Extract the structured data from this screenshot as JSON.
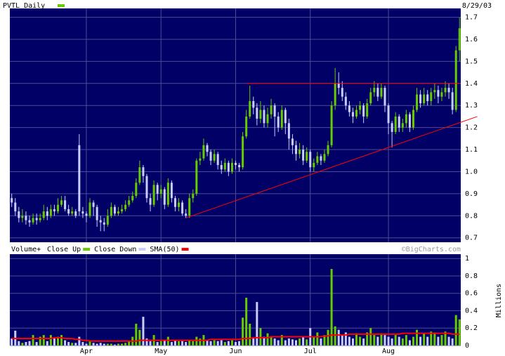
{
  "chart_data": [
    {
      "type": "candlestick",
      "title": "PVTL Daily",
      "date": "8/29/03",
      "color": "#66cc00",
      "up_color": "#66cc00",
      "down_color": "#c8ccff",
      "open": [
        0.88,
        0.86,
        0.82,
        0.79,
        0.8,
        0.78,
        0.77,
        0.79,
        0.78,
        0.79,
        0.82,
        0.8,
        0.83,
        0.82,
        0.85,
        0.87,
        0.83,
        0.81,
        0.82,
        1.12,
        0.82,
        0.81,
        0.8,
        0.86,
        0.84,
        0.78,
        0.77,
        0.76,
        0.8,
        0.84,
        0.81,
        0.82,
        0.83,
        0.85,
        0.87,
        0.89,
        0.95,
        1.02,
        0.98,
        0.88,
        0.85,
        0.94,
        0.9,
        0.92,
        0.85,
        0.95,
        0.88,
        0.84,
        0.86,
        0.81,
        0.8,
        0.88,
        0.9,
        1.05,
        1.06,
        1.12,
        1.09,
        1.05,
        1.08,
        1.03,
        1.01,
        1.04,
        1.0,
        1.04,
        1.03,
        1.02,
        1.16,
        1.25,
        1.32,
        1.29,
        1.24,
        1.28,
        1.22,
        1.26,
        1.3,
        1.25,
        1.2,
        1.28,
        1.22,
        1.15,
        1.12,
        1.08,
        1.1,
        1.05,
        1.09,
        1.02,
        1.04,
        1.07,
        1.05,
        1.08,
        1.12,
        1.3,
        1.4,
        1.38,
        1.34,
        1.3,
        1.27,
        1.25,
        1.28,
        1.3,
        1.25,
        1.31,
        1.36,
        1.38,
        1.34,
        1.38,
        1.3,
        1.22,
        1.18,
        1.25,
        1.2,
        1.22,
        1.26,
        1.2,
        1.28,
        1.35,
        1.31,
        1.35,
        1.32,
        1.36,
        1.37,
        1.34,
        1.36,
        1.38,
        1.36,
        1.28,
        1.55
      ],
      "high": [
        0.9,
        0.88,
        0.84,
        0.83,
        0.82,
        0.8,
        0.81,
        0.81,
        0.81,
        0.85,
        0.84,
        0.85,
        0.85,
        0.88,
        0.89,
        0.89,
        0.85,
        0.84,
        0.83,
        1.17,
        0.84,
        0.82,
        0.88,
        0.87,
        0.85,
        0.8,
        0.79,
        0.83,
        0.86,
        0.85,
        0.84,
        0.85,
        0.87,
        0.89,
        0.91,
        0.97,
        1.05,
        1.03,
        0.99,
        0.9,
        0.96,
        0.95,
        0.94,
        0.93,
        0.97,
        0.96,
        0.89,
        0.88,
        0.87,
        0.83,
        0.9,
        0.92,
        1.06,
        1.09,
        1.15,
        1.13,
        1.1,
        1.1,
        1.09,
        1.05,
        1.06,
        1.05,
        1.06,
        1.05,
        1.04,
        1.18,
        1.28,
        1.39,
        1.34,
        1.31,
        1.32,
        1.3,
        1.29,
        1.33,
        1.31,
        1.27,
        1.3,
        1.29,
        1.24,
        1.17,
        1.14,
        1.13,
        1.12,
        1.11,
        1.1,
        1.06,
        1.09,
        1.08,
        1.1,
        1.14,
        1.32,
        1.47,
        1.45,
        1.41,
        1.36,
        1.32,
        1.29,
        1.3,
        1.32,
        1.31,
        1.33,
        1.38,
        1.41,
        1.4,
        1.4,
        1.39,
        1.31,
        1.23,
        1.27,
        1.26,
        1.24,
        1.28,
        1.27,
        1.3,
        1.38,
        1.37,
        1.38,
        1.37,
        1.38,
        1.4,
        1.39,
        1.38,
        1.41,
        1.4,
        1.38,
        1.57,
        1.7
      ],
      "low": [
        0.84,
        0.8,
        0.77,
        0.77,
        0.76,
        0.75,
        0.76,
        0.76,
        0.77,
        0.78,
        0.78,
        0.79,
        0.8,
        0.81,
        0.84,
        0.82,
        0.8,
        0.8,
        0.79,
        0.8,
        0.79,
        0.77,
        0.79,
        0.8,
        0.75,
        0.73,
        0.73,
        0.75,
        0.79,
        0.8,
        0.8,
        0.81,
        0.82,
        0.84,
        0.86,
        0.88,
        0.94,
        0.95,
        0.86,
        0.82,
        0.84,
        0.87,
        0.88,
        0.83,
        0.84,
        0.86,
        0.82,
        0.82,
        0.8,
        0.79,
        0.79,
        0.86,
        0.89,
        1.03,
        1.05,
        1.07,
        1.03,
        1.04,
        1.01,
        0.99,
        1.0,
        0.98,
        0.99,
        1.01,
        1.0,
        1.01,
        1.15,
        1.24,
        1.26,
        1.21,
        1.22,
        1.2,
        1.2,
        1.24,
        1.16,
        1.18,
        1.19,
        1.17,
        1.1,
        1.08,
        1.05,
        1.06,
        1.03,
        1.04,
        1.0,
        1.0,
        1.03,
        1.03,
        1.04,
        1.07,
        1.11,
        1.28,
        1.35,
        1.32,
        1.28,
        1.25,
        1.22,
        1.24,
        1.26,
        1.22,
        1.24,
        1.3,
        1.34,
        1.32,
        1.33,
        1.27,
        1.17,
        1.11,
        1.17,
        1.18,
        1.18,
        1.2,
        1.18,
        1.19,
        1.27,
        1.29,
        1.3,
        1.3,
        1.3,
        1.33,
        1.31,
        1.32,
        1.34,
        1.33,
        1.26,
        1.27,
        1.5
      ],
      "close": [
        0.86,
        0.82,
        0.79,
        0.8,
        0.78,
        0.77,
        0.79,
        0.78,
        0.79,
        0.82,
        0.8,
        0.83,
        0.82,
        0.85,
        0.87,
        0.83,
        0.81,
        0.82,
        0.8,
        0.82,
        0.81,
        0.8,
        0.86,
        0.84,
        0.78,
        0.77,
        0.76,
        0.8,
        0.84,
        0.81,
        0.82,
        0.83,
        0.85,
        0.87,
        0.89,
        0.95,
        1.02,
        0.98,
        0.88,
        0.85,
        0.94,
        0.9,
        0.92,
        0.85,
        0.95,
        0.88,
        0.84,
        0.86,
        0.81,
        0.8,
        0.88,
        0.9,
        1.05,
        1.06,
        1.12,
        1.09,
        1.05,
        1.08,
        1.03,
        1.01,
        1.04,
        1.0,
        1.04,
        1.03,
        1.02,
        1.16,
        1.25,
        1.32,
        1.29,
        1.24,
        1.28,
        1.22,
        1.26,
        1.3,
        1.25,
        1.2,
        1.28,
        1.22,
        1.15,
        1.12,
        1.08,
        1.1,
        1.05,
        1.09,
        1.02,
        1.04,
        1.07,
        1.05,
        1.08,
        1.12,
        1.3,
        1.4,
        1.38,
        1.34,
        1.3,
        1.27,
        1.25,
        1.28,
        1.3,
        1.25,
        1.31,
        1.36,
        1.38,
        1.34,
        1.38,
        1.3,
        1.22,
        1.18,
        1.25,
        1.2,
        1.22,
        1.26,
        1.2,
        1.28,
        1.35,
        1.31,
        1.35,
        1.32,
        1.36,
        1.37,
        1.34,
        1.36,
        1.38,
        1.36,
        1.28,
        1.55,
        1.65
      ],
      "lines": [
        {
          "color": "#ff0000",
          "start": [
            49,
            0.79
          ],
          "end": [
            131,
            1.25
          ]
        },
        {
          "color": "#ff0000",
          "start": [
            66,
            1.4
          ],
          "end": [
            126,
            1.4
          ]
        }
      ],
      "ylim": [
        0.68,
        1.74
      ],
      "yticks": [
        0.7,
        0.8,
        0.9,
        {
          "value": 1,
          "label": "1.0"
        },
        1.1,
        1.2,
        1.3,
        1.4,
        1.5,
        1.6,
        1.7
      ],
      "grid": true
    },
    {
      "type": "bar",
      "title": "Volume+",
      "y_label": "Millions",
      "watermark": "©BigCharts.com",
      "legend": [
        {
          "name": "Close Up",
          "color": "#66cc00"
        },
        {
          "name": "Close Down",
          "color": "#c8ccff"
        }
      ],
      "values": [
        0.08,
        0.17,
        0.05,
        0.03,
        0.04,
        0.05,
        0.12,
        0.04,
        0.1,
        0.12,
        0.05,
        0.12,
        0.08,
        0.1,
        0.12,
        0.06,
        0.04,
        0.03,
        0.03,
        0.1,
        0.04,
        0.02,
        0.06,
        0.03,
        0.02,
        0.03,
        0.02,
        0.02,
        0.02,
        0.01,
        0.02,
        0.02,
        0.03,
        0.05,
        0.1,
        0.25,
        0.18,
        0.33,
        0.08,
        0.05,
        0.12,
        0.04,
        0.05,
        0.06,
        0.1,
        0.04,
        0.06,
        0.05,
        0.05,
        0.04,
        0.06,
        0.05,
        0.1,
        0.08,
        0.12,
        0.06,
        0.05,
        0.06,
        0.05,
        0.06,
        0.04,
        0.05,
        0.06,
        0.04,
        0.05,
        0.32,
        0.55,
        0.25,
        0.08,
        0.5,
        0.2,
        0.1,
        0.14,
        0.1,
        0.08,
        0.06,
        0.12,
        0.06,
        0.08,
        0.07,
        0.06,
        0.08,
        0.1,
        0.07,
        0.2,
        0.1,
        0.15,
        0.08,
        0.12,
        0.18,
        0.88,
        0.22,
        0.18,
        0.12,
        0.15,
        0.1,
        0.08,
        0.14,
        0.1,
        0.08,
        0.15,
        0.2,
        0.12,
        0.1,
        0.14,
        0.12,
        0.1,
        0.08,
        0.12,
        0.1,
        0.08,
        0.12,
        0.06,
        0.1,
        0.18,
        0.1,
        0.14,
        0.1,
        0.16,
        0.15,
        0.1,
        0.12,
        0.16,
        0.1,
        0.08,
        0.35,
        0.3
      ],
      "series": [
        {
          "name": "SMA(50)",
          "color": "#ff0000",
          "values": [
            0.08,
            0.08,
            0.08,
            0.08,
            0.08,
            0.08,
            0.08,
            0.08,
            0.08,
            0.08,
            0.08,
            0.08,
            0.09,
            0.09,
            0.09,
            0.08,
            0.08,
            0.08,
            0.07,
            0.07,
            0.06,
            0.06,
            0.05,
            0.05,
            0.05,
            0.05,
            0.05,
            0.05,
            0.05,
            0.05,
            0.05,
            0.05,
            0.05,
            0.05,
            0.05,
            0.05,
            0.06,
            0.06,
            0.06,
            0.06,
            0.06,
            0.06,
            0.06,
            0.06,
            0.06,
            0.06,
            0.06,
            0.06,
            0.06,
            0.06,
            0.06,
            0.06,
            0.06,
            0.06,
            0.06,
            0.06,
            0.07,
            0.07,
            0.07,
            0.07,
            0.07,
            0.07,
            0.07,
            0.07,
            0.07,
            0.08,
            0.08,
            0.08,
            0.09,
            0.09,
            0.09,
            0.09,
            0.09,
            0.1,
            0.1,
            0.1,
            0.1,
            0.1,
            0.1,
            0.1,
            0.1,
            0.1,
            0.1,
            0.1,
            0.1,
            0.1,
            0.1,
            0.1,
            0.11,
            0.11,
            0.12,
            0.12,
            0.12,
            0.12,
            0.12,
            0.13,
            0.13,
            0.13,
            0.13,
            0.13,
            0.13,
            0.13,
            0.13,
            0.13,
            0.13,
            0.13,
            0.13,
            0.13,
            0.13,
            0.13,
            0.14,
            0.14,
            0.14,
            0.14,
            0.14,
            0.14,
            0.14,
            0.14,
            0.14,
            0.14,
            0.14,
            0.14,
            0.14,
            0.14,
            0.13,
            0.13,
            0.13
          ]
        }
      ],
      "ylim": [
        0,
        1.05
      ],
      "yticks": [
        0,
        0.2,
        0.4,
        0.6,
        0.8,
        1
      ],
      "xticks": [
        {
          "value": 21,
          "label": "Apr"
        },
        {
          "value": 42,
          "label": "May"
        },
        {
          "value": 63,
          "label": "Jun"
        },
        {
          "value": 84,
          "label": "Jul"
        },
        {
          "value": 106,
          "label": "Aug"
        }
      ],
      "grid": true
    }
  ]
}
